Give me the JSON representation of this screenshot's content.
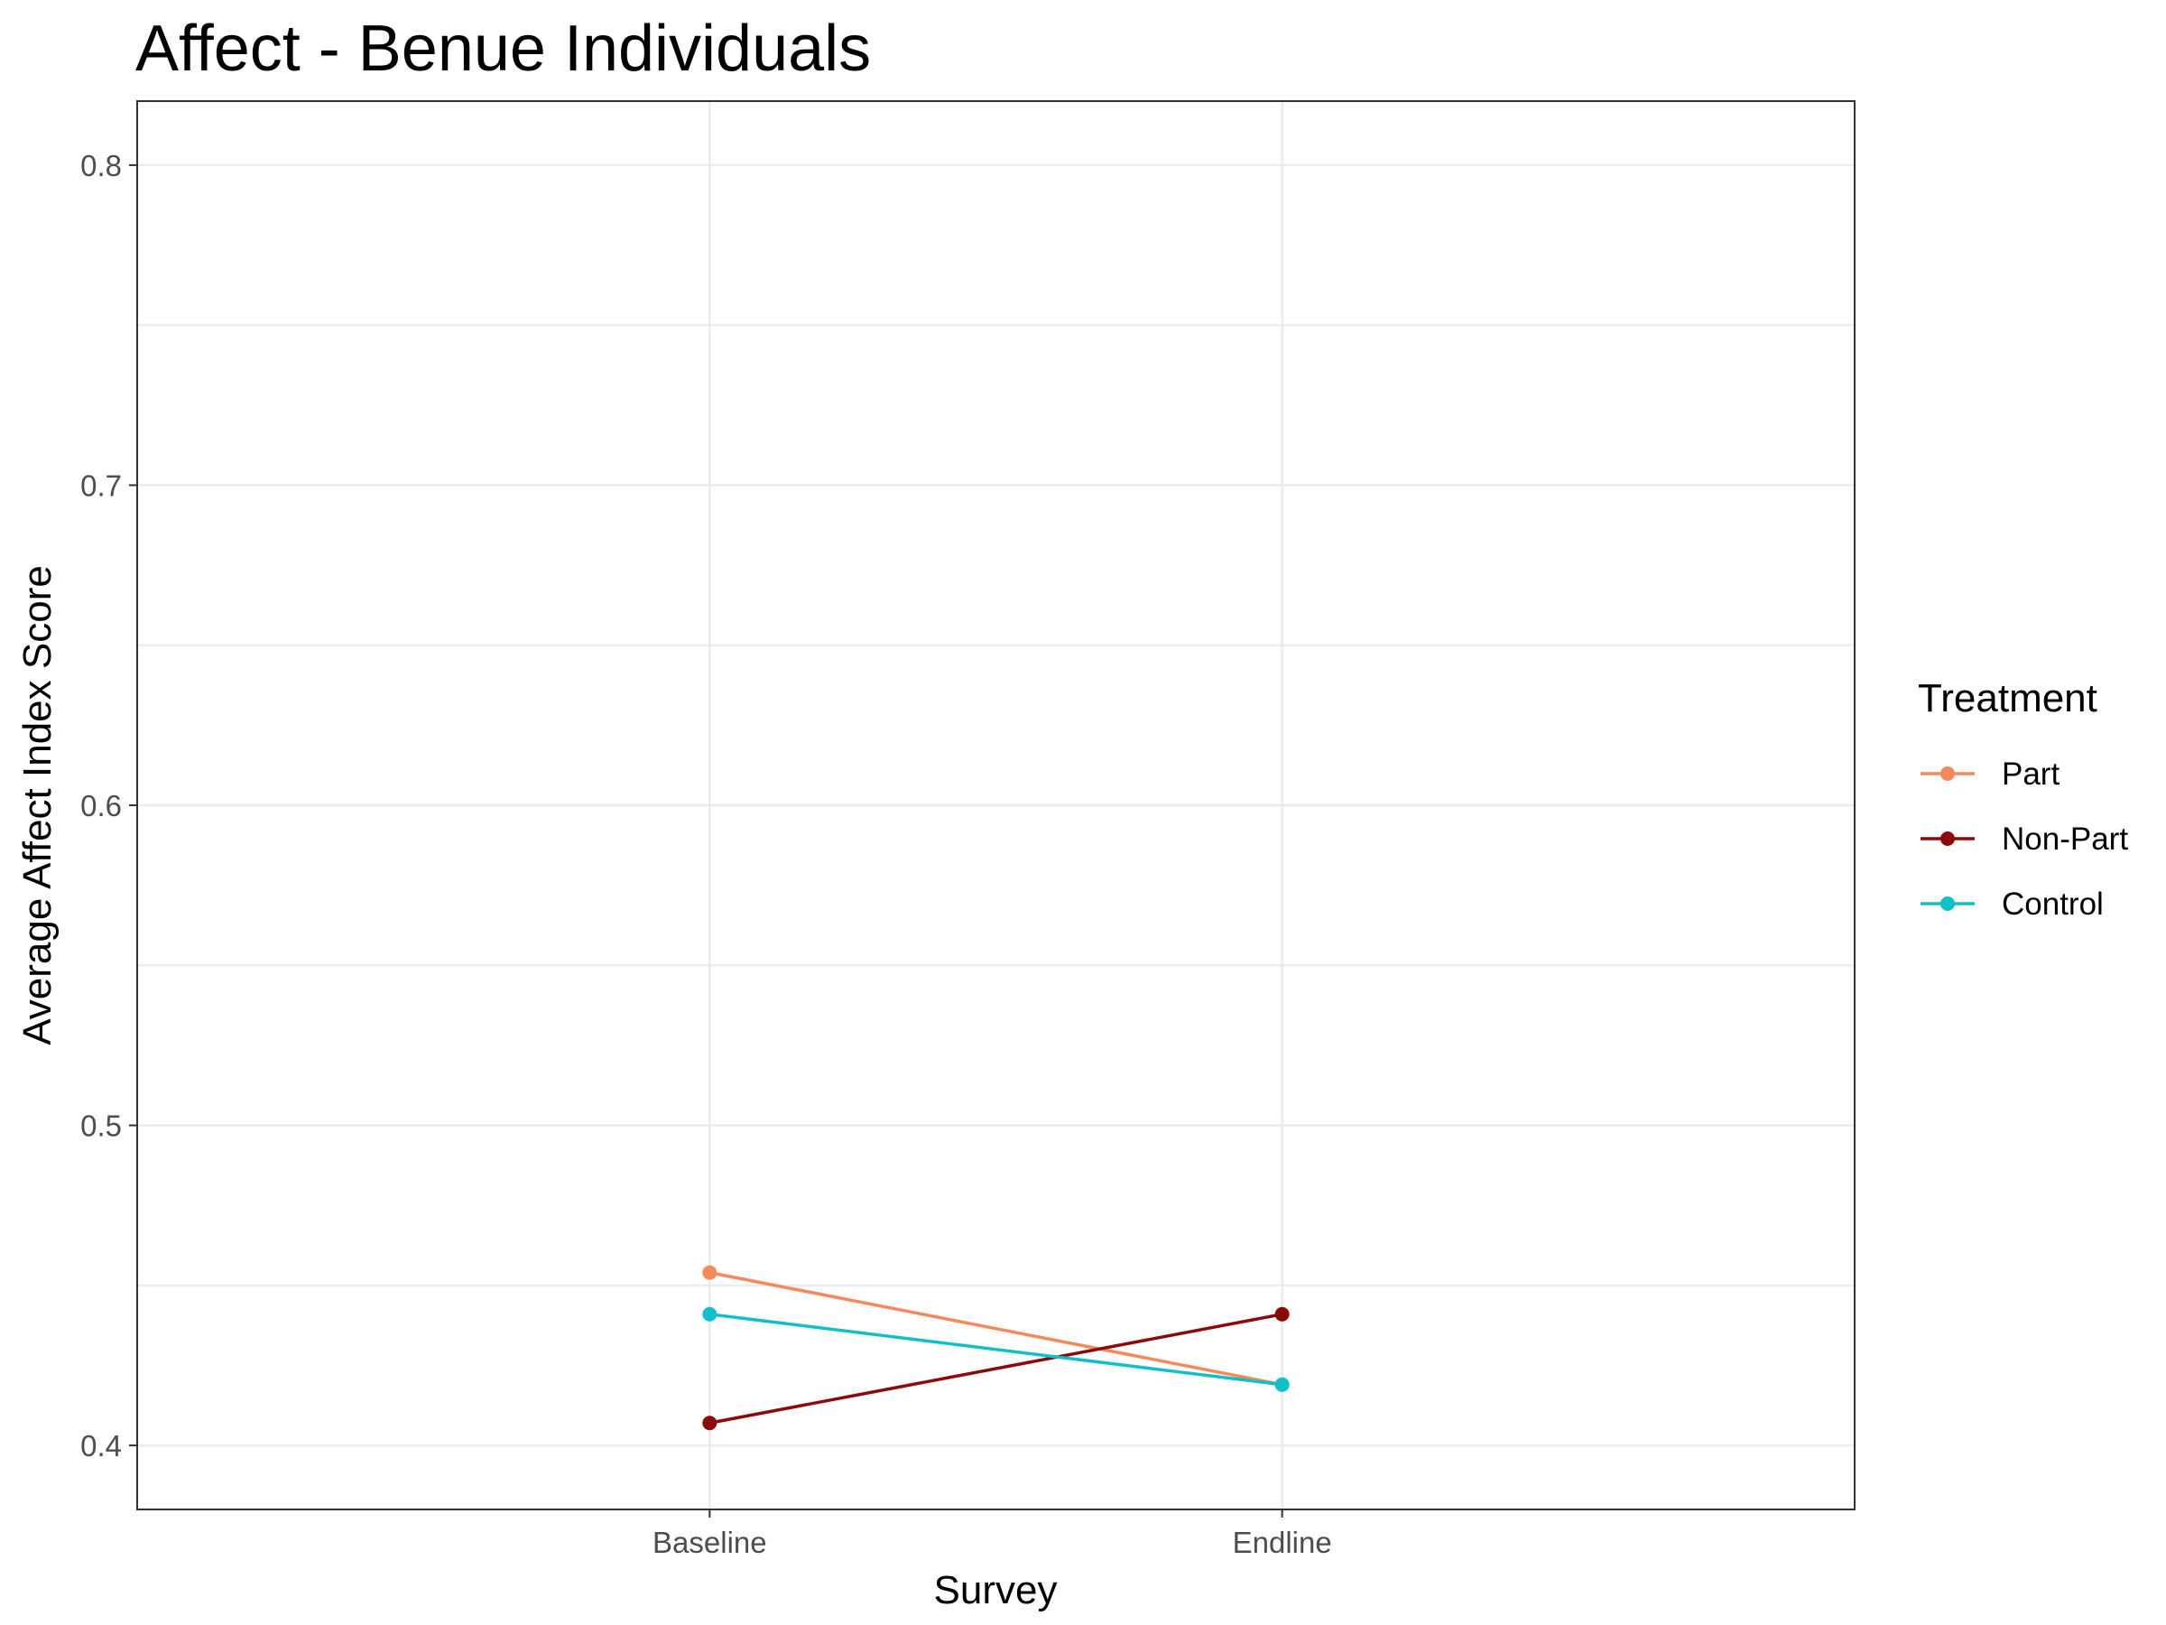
{
  "chart_data": {
    "type": "line",
    "title": "Affect - Benue Individuals",
    "xlabel": "Survey",
    "ylabel": "Average Affect Index Score",
    "categories": [
      "Baseline",
      "Endline"
    ],
    "ylim": [
      0.38,
      0.82
    ],
    "yticks": [
      "0.4",
      "0.5",
      "0.6",
      "0.7",
      "0.8"
    ],
    "ytick_values": [
      0.4,
      0.5,
      0.6,
      0.7,
      0.8
    ],
    "minor_gridlines": [
      0.45,
      0.55,
      0.65,
      0.75
    ],
    "grid": true,
    "legend": {
      "title": "Treatment",
      "placement": "right"
    },
    "series": [
      {
        "name": "Part",
        "color": "#f48a5c",
        "values": [
          0.454,
          0.419
        ]
      },
      {
        "name": "Non-Part",
        "color": "#8b0a0a",
        "values": [
          0.407,
          0.441
        ]
      },
      {
        "name": "Control",
        "color": "#10bfc9",
        "values": [
          0.441,
          0.419
        ]
      }
    ]
  }
}
